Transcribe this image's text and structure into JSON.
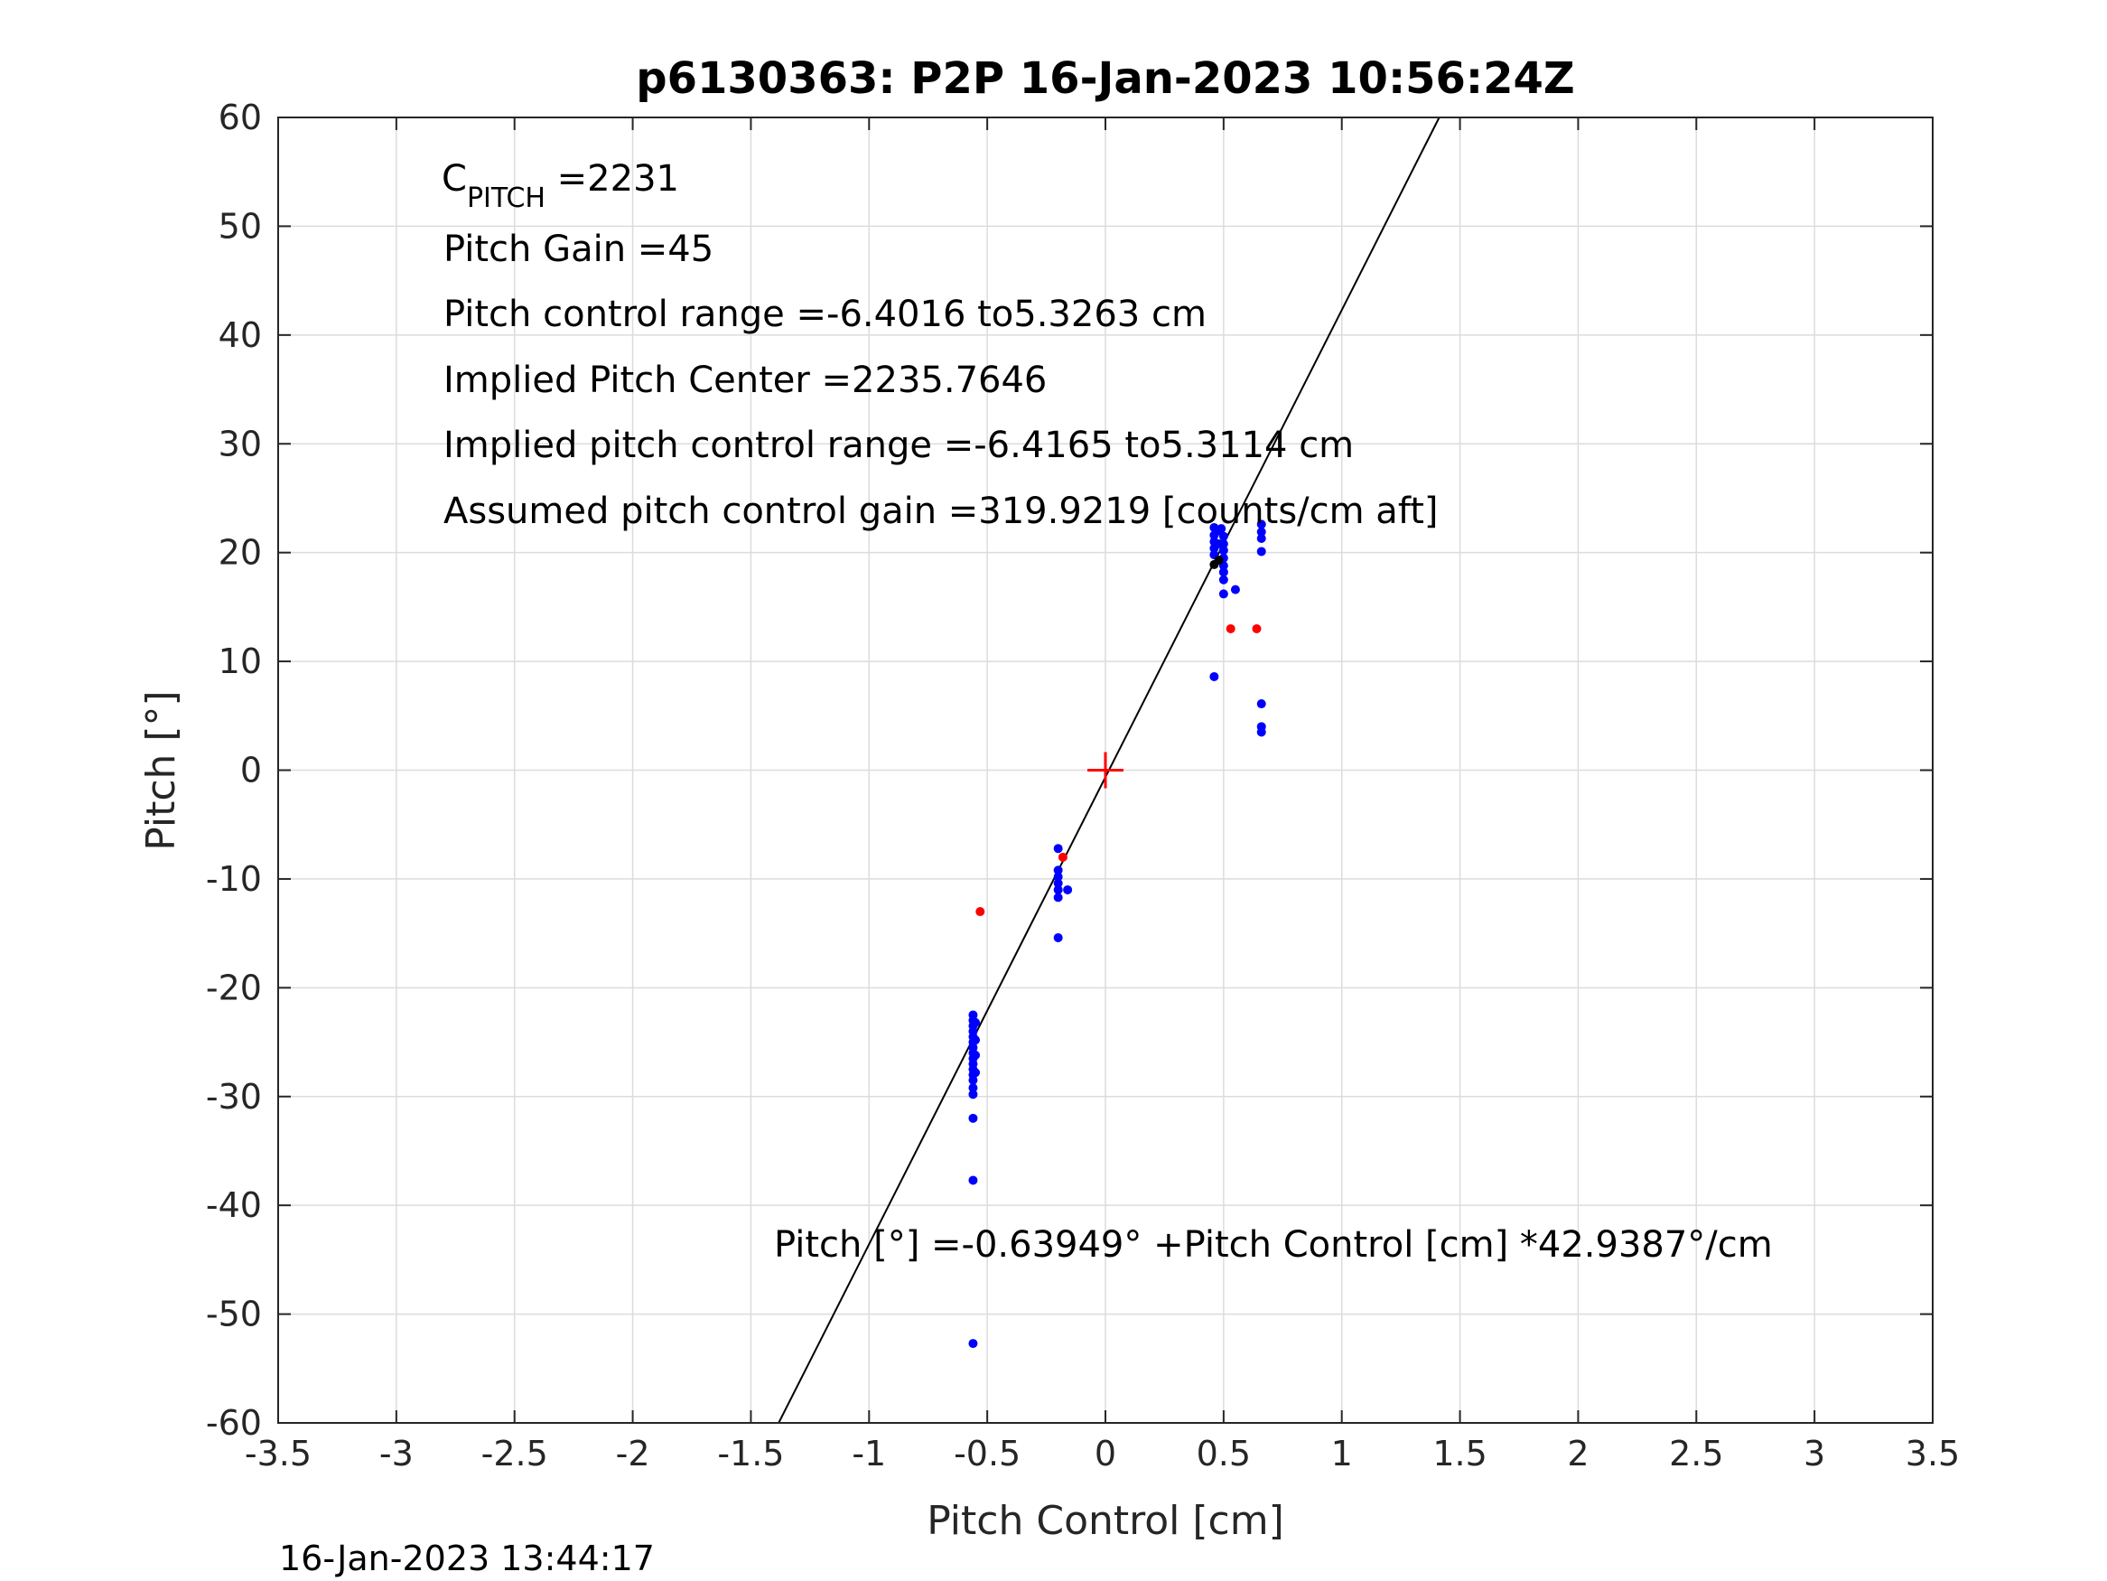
{
  "chart_data": {
    "type": "scatter",
    "title": "p6130363: P2P 16-Jan-2023 10:56:24Z",
    "xlabel": "Pitch Control [cm]",
    "ylabel": "Pitch [°]",
    "xlim": [
      -3.5,
      3.5
    ],
    "ylim": [
      -60,
      60
    ],
    "xticks": [
      -3.5,
      -3,
      -2.5,
      -2,
      -1.5,
      -1,
      -0.5,
      0,
      0.5,
      1,
      1.5,
      2,
      2.5,
      3,
      3.5
    ],
    "xtick_labels": [
      "-3.5",
      "-3",
      "-2.5",
      "-2",
      "-1.5",
      "-1",
      "-0.5",
      "0",
      "0.5",
      "1",
      "1.5",
      "2",
      "2.5",
      "3",
      "3.5"
    ],
    "yticks": [
      -60,
      -50,
      -40,
      -30,
      -20,
      -10,
      0,
      10,
      20,
      30,
      40,
      50,
      60
    ],
    "ytick_labels": [
      "-60",
      "-50",
      "-40",
      "-30",
      "-20",
      "-10",
      "0",
      "10",
      "20",
      "30",
      "40",
      "50",
      "60"
    ],
    "grid": true,
    "colors": {
      "blue_points": "#0000ff",
      "red_points": "#ff0000",
      "black_points": "#000000",
      "fit_line": "#000000",
      "center_marker": "#ff0000",
      "grid": "#dcdcdc",
      "axes": "#262626"
    },
    "fit_line": {
      "intercept": -0.63949,
      "slope": 42.9387
    },
    "center_marker": {
      "x": 0,
      "y": 0
    },
    "series": [
      {
        "color": "blue",
        "points": [
          [
            -0.56,
            -22.5
          ],
          [
            -0.56,
            -23.0
          ],
          [
            -0.56,
            -23.5
          ],
          [
            -0.56,
            -24.0
          ],
          [
            -0.56,
            -24.5
          ],
          [
            -0.56,
            -25.0
          ],
          [
            -0.56,
            -25.5
          ],
          [
            -0.56,
            -26.0
          ],
          [
            -0.56,
            -26.5
          ],
          [
            -0.56,
            -27.0
          ],
          [
            -0.56,
            -27.5
          ],
          [
            -0.56,
            -28.0
          ],
          [
            -0.56,
            -28.5
          ],
          [
            -0.56,
            -29.2
          ],
          [
            -0.56,
            -29.8
          ],
          [
            -0.55,
            -23.2
          ],
          [
            -0.55,
            -24.8
          ],
          [
            -0.55,
            -26.2
          ],
          [
            -0.55,
            -27.8
          ],
          [
            -0.56,
            -32.0
          ],
          [
            -0.56,
            -37.7
          ],
          [
            -0.56,
            -52.7
          ],
          [
            -0.2,
            -7.2
          ],
          [
            -0.2,
            -9.2
          ],
          [
            -0.2,
            -9.8
          ],
          [
            -0.2,
            -10.4
          ],
          [
            -0.2,
            -11.0
          ],
          [
            -0.2,
            -11.7
          ],
          [
            -0.16,
            -11.0
          ],
          [
            -0.2,
            -15.4
          ],
          [
            0.46,
            22.3
          ],
          [
            0.46,
            21.6
          ],
          [
            0.46,
            21.0
          ],
          [
            0.46,
            20.4
          ],
          [
            0.46,
            19.8
          ],
          [
            0.48,
            22.0
          ],
          [
            0.48,
            20.8
          ],
          [
            0.49,
            22.2
          ],
          [
            0.5,
            21.5
          ],
          [
            0.5,
            20.8
          ],
          [
            0.5,
            20.2
          ],
          [
            0.5,
            19.5
          ],
          [
            0.5,
            18.8
          ],
          [
            0.5,
            18.2
          ],
          [
            0.5,
            17.5
          ],
          [
            0.5,
            16.2
          ],
          [
            0.55,
            16.6
          ],
          [
            0.46,
            8.6
          ],
          [
            0.66,
            22.6
          ],
          [
            0.66,
            21.9
          ],
          [
            0.66,
            21.3
          ],
          [
            0.66,
            20.1
          ],
          [
            0.66,
            6.1
          ],
          [
            0.66,
            4.0
          ],
          [
            0.66,
            3.5
          ]
        ]
      },
      {
        "color": "red",
        "points": [
          [
            -0.53,
            -13.0
          ],
          [
            -0.18,
            -8.0
          ],
          [
            0.53,
            13.0
          ],
          [
            0.64,
            13.0
          ]
        ]
      },
      {
        "color": "black",
        "points": [
          [
            0.46,
            18.9
          ],
          [
            0.48,
            19.3
          ]
        ]
      }
    ],
    "annotations": {
      "c_pitch_main": "C",
      "c_pitch_sub": "PITCH",
      "c_pitch_value": " =2231",
      "pitch_gain": "Pitch Gain =45",
      "control_range": "Pitch control range =-6.4016 to5.3263 cm",
      "implied_center": "Implied Pitch Center =2235.7646",
      "implied_range": "Implied pitch control range =-6.4165 to5.3114 cm",
      "assumed_gain": "Assumed pitch control gain =319.9219 [counts/cm aft]",
      "fit_equation": "Pitch [°] =-0.63949° +Pitch Control [cm] *42.9387°/cm"
    },
    "timestamp": "16-Jan-2023 13:44:17"
  }
}
